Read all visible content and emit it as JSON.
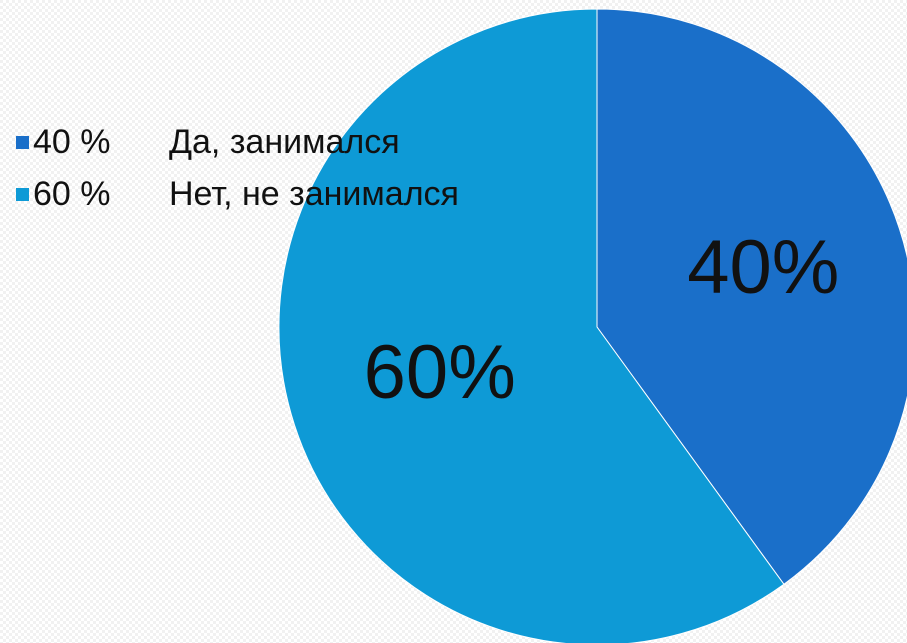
{
  "chart_data": {
    "type": "pie",
    "slices": [
      {
        "label": "Да, занимался",
        "legend_value": "40 %",
        "value": 40,
        "data_label": "40%",
        "color": "#1a6fc9"
      },
      {
        "label": "Нет, не занимался",
        "legend_value": "60 %",
        "value": 60,
        "data_label": "60%",
        "color": "#0e9ad6"
      }
    ],
    "start_angle_deg": 0,
    "direction": "clockwise",
    "legend_position": "top-left"
  }
}
